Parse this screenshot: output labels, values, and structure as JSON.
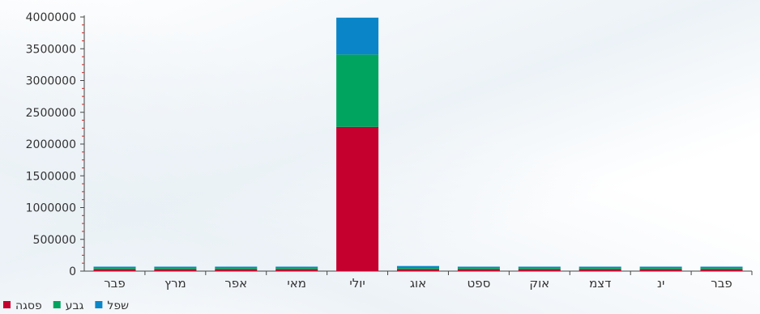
{
  "chart_data": {
    "type": "bar",
    "stacked": true,
    "categories": [
      "פבר",
      "מרץ",
      "אפר",
      "מאי",
      "יולי",
      "אוג",
      "ספט",
      "אוק",
      "דצמ",
      "ינ",
      "פבר"
    ],
    "series": [
      {
        "name": "פסגה",
        "color": "#c5002f",
        "values": [
          30000,
          30000,
          30000,
          30000,
          2270000,
          30000,
          30000,
          30000,
          30000,
          30000,
          30000
        ]
      },
      {
        "name": "גבע",
        "color": "#00a45f",
        "values": [
          20000,
          20000,
          20000,
          20000,
          1140000,
          20000,
          20000,
          20000,
          20000,
          20000,
          20000
        ]
      },
      {
        "name": "שפל",
        "color": "#0a86c8",
        "values": [
          20000,
          20000,
          20000,
          20000,
          580000,
          30000,
          20000,
          20000,
          20000,
          20000,
          20000
        ]
      }
    ],
    "ylim": [
      0,
      4000000
    ],
    "yticks": [
      0,
      500000,
      1000000,
      1500000,
      2000000,
      2500000,
      3000000,
      3500000,
      4000000
    ],
    "legend_position": "bottom-left",
    "grid": false
  }
}
